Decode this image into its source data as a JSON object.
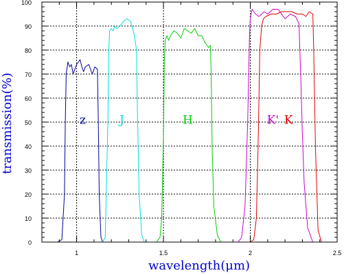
{
  "chart_data": {
    "type": "line",
    "title": "",
    "xlabel": "wavelength(μm)",
    "ylabel": "transmission(%)",
    "xlim": [
      0.8,
      2.5
    ],
    "ylim": [
      0,
      100
    ],
    "xticks": [
      1,
      1.5,
      2,
      2.5
    ],
    "xtick_labels": [
      "1",
      "1.5",
      "2",
      "2.5"
    ],
    "yticks": [
      0,
      10,
      20,
      30,
      40,
      50,
      60,
      70,
      80,
      90,
      100
    ],
    "ytick_labels": [
      "0",
      "10",
      "20",
      "30",
      "40",
      "50",
      "60",
      "70",
      "80",
      "90",
      "100"
    ],
    "grid": true,
    "series": [
      {
        "name": "z",
        "color": "#000099",
        "label_pos": [
          1.035,
          51
        ],
        "points": [
          [
            0.89,
            0
          ],
          [
            0.915,
            1
          ],
          [
            0.93,
            20
          ],
          [
            0.935,
            50
          ],
          [
            0.94,
            70
          ],
          [
            0.95,
            75
          ],
          [
            0.96,
            73
          ],
          [
            0.97,
            74
          ],
          [
            0.98,
            70
          ],
          [
            1.0,
            74
          ],
          [
            1.02,
            76
          ],
          [
            1.03,
            73
          ],
          [
            1.04,
            71
          ],
          [
            1.05,
            73
          ],
          [
            1.07,
            74
          ],
          [
            1.09,
            70
          ],
          [
            1.105,
            73
          ],
          [
            1.12,
            72
          ],
          [
            1.125,
            50
          ],
          [
            1.13,
            20
          ],
          [
            1.14,
            2
          ],
          [
            1.15,
            0
          ]
        ]
      },
      {
        "name": "J",
        "color": "#00dddd",
        "label_pos": [
          1.26,
          51
        ],
        "points": [
          [
            1.15,
            0
          ],
          [
            1.165,
            2
          ],
          [
            1.18,
            50
          ],
          [
            1.185,
            80
          ],
          [
            1.19,
            88
          ],
          [
            1.2,
            89
          ],
          [
            1.21,
            88
          ],
          [
            1.22,
            90
          ],
          [
            1.23,
            89
          ],
          [
            1.25,
            90
          ],
          [
            1.27,
            92
          ],
          [
            1.29,
            93
          ],
          [
            1.31,
            92
          ],
          [
            1.33,
            87
          ],
          [
            1.345,
            80
          ],
          [
            1.35,
            55
          ],
          [
            1.36,
            20
          ],
          [
            1.375,
            3
          ],
          [
            1.39,
            0
          ]
        ]
      },
      {
        "name": "H",
        "color": "#00cc00",
        "label_pos": [
          1.64,
          51
        ],
        "points": [
          [
            1.46,
            0
          ],
          [
            1.48,
            2
          ],
          [
            1.49,
            10
          ],
          [
            1.5,
            45
          ],
          [
            1.505,
            75
          ],
          [
            1.51,
            84
          ],
          [
            1.52,
            86
          ],
          [
            1.53,
            84
          ],
          [
            1.54,
            86
          ],
          [
            1.56,
            88
          ],
          [
            1.58,
            87
          ],
          [
            1.6,
            85
          ],
          [
            1.62,
            89
          ],
          [
            1.64,
            88
          ],
          [
            1.66,
            87
          ],
          [
            1.68,
            89
          ],
          [
            1.7,
            86
          ],
          [
            1.72,
            86
          ],
          [
            1.74,
            83
          ],
          [
            1.76,
            81
          ],
          [
            1.77,
            82
          ],
          [
            1.775,
            70
          ],
          [
            1.78,
            40
          ],
          [
            1.79,
            15
          ],
          [
            1.81,
            3
          ],
          [
            1.83,
            0
          ]
        ]
      },
      {
        "name": "K'",
        "color": "#cc00cc",
        "label_pos": [
          2.13,
          51
        ],
        "points": [
          [
            1.93,
            0
          ],
          [
            1.95,
            2
          ],
          [
            1.97,
            15
          ],
          [
            1.985,
            50
          ],
          [
            1.995,
            85
          ],
          [
            2.0,
            93
          ],
          [
            2.01,
            97
          ],
          [
            2.03,
            95
          ],
          [
            2.05,
            94
          ],
          [
            2.08,
            96
          ],
          [
            2.1,
            95
          ],
          [
            2.13,
            97
          ],
          [
            2.16,
            97
          ],
          [
            2.18,
            95
          ],
          [
            2.2,
            93
          ],
          [
            2.23,
            95
          ],
          [
            2.26,
            94
          ],
          [
            2.28,
            91
          ],
          [
            2.29,
            70
          ],
          [
            2.3,
            45
          ],
          [
            2.31,
            25
          ],
          [
            2.33,
            6
          ],
          [
            2.36,
            0
          ]
        ]
      },
      {
        "name": "K",
        "color": "#dd0000",
        "label_pos": [
          2.22,
          51
        ],
        "points": [
          [
            2.0,
            0
          ],
          [
            2.02,
            1
          ],
          [
            2.035,
            10
          ],
          [
            2.045,
            40
          ],
          [
            2.055,
            80
          ],
          [
            2.065,
            90
          ],
          [
            2.075,
            93
          ],
          [
            2.09,
            94
          ],
          [
            2.12,
            95
          ],
          [
            2.15,
            95
          ],
          [
            2.18,
            96
          ],
          [
            2.21,
            96
          ],
          [
            2.24,
            96
          ],
          [
            2.27,
            95
          ],
          [
            2.3,
            95
          ],
          [
            2.32,
            94
          ],
          [
            2.34,
            96
          ],
          [
            2.36,
            95
          ],
          [
            2.365,
            80
          ],
          [
            2.375,
            40
          ],
          [
            2.39,
            5
          ],
          [
            2.41,
            0
          ]
        ]
      }
    ]
  }
}
